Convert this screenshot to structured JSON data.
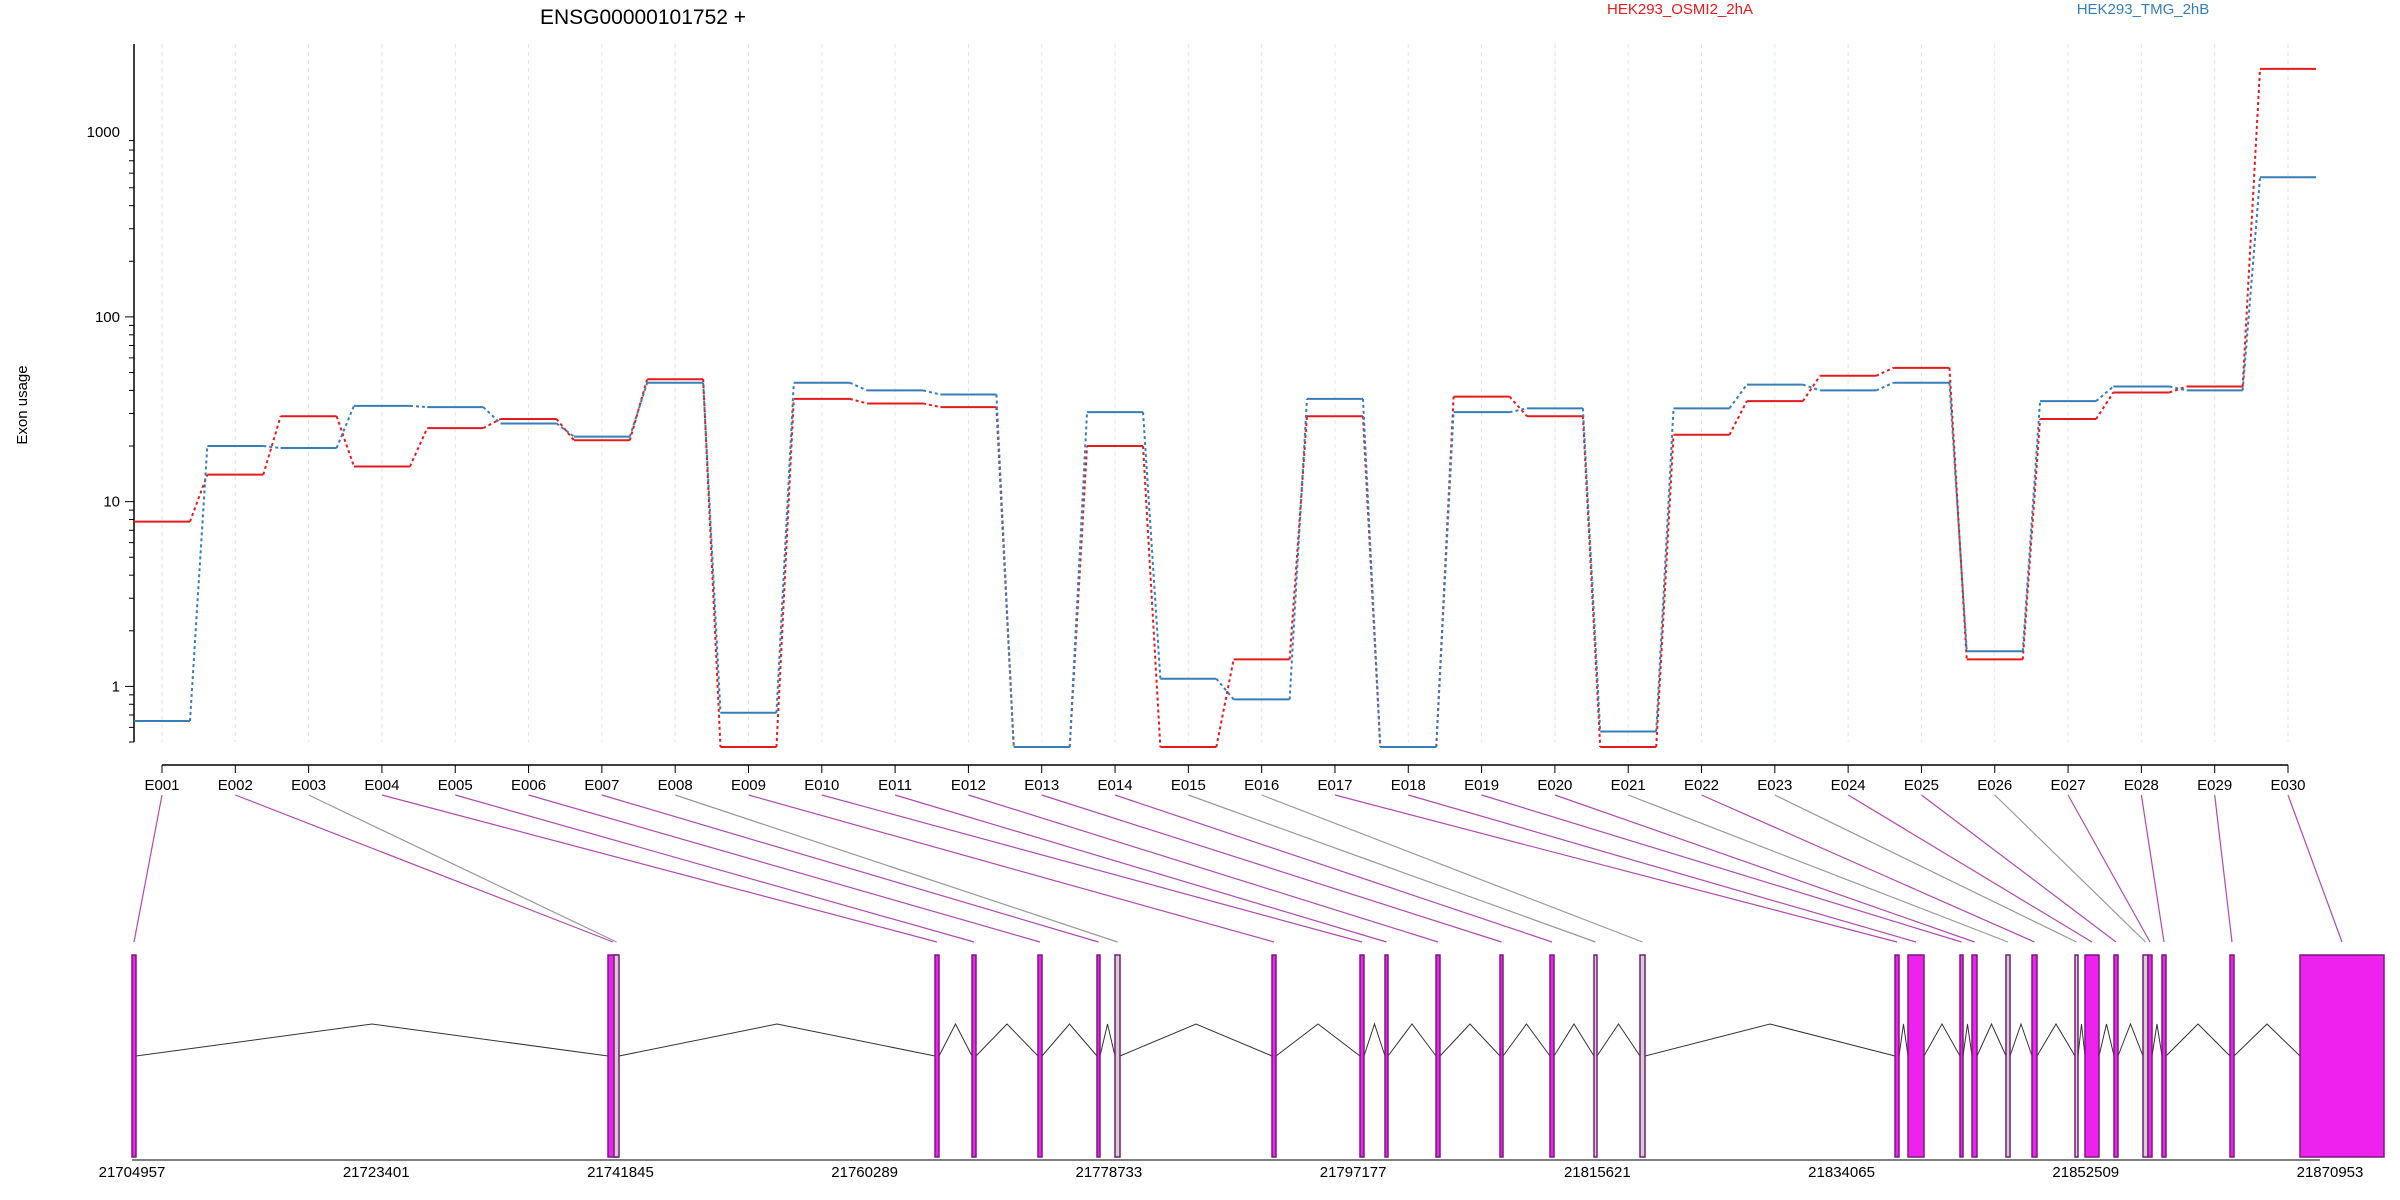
{
  "chart_data": {
    "type": "line",
    "title": "ENSG00000101752 +",
    "ylabel": "Exon usage",
    "yscale": "log",
    "ylim": [
      0.5,
      3000
    ],
    "yticks": [
      1,
      10,
      100,
      1000
    ],
    "ytick_labels": [
      "1",
      "10",
      "100",
      "1000"
    ],
    "categories": [
      "E001",
      "E002",
      "E003",
      "E004",
      "E005",
      "E006",
      "E007",
      "E008",
      "E009",
      "E010",
      "E011",
      "E012",
      "E013",
      "E014",
      "E015",
      "E016",
      "E017",
      "E018",
      "E019",
      "E020",
      "E021",
      "E022",
      "E023",
      "E024",
      "E025",
      "E026",
      "E027",
      "E028",
      "E029",
      "E030"
    ],
    "series": [
      {
        "name": "HEK293_OSMI2_2hA",
        "color": "#e41a1c",
        "values": [
          7.8,
          14,
          29,
          15.5,
          25,
          28,
          21.5,
          46,
          0.47,
          36,
          34,
          32.5,
          0.47,
          20,
          0.47,
          1.4,
          29,
          0.47,
          37,
          29,
          0.47,
          23,
          35,
          48,
          53,
          1.4,
          28,
          39,
          42,
          2200
        ]
      },
      {
        "name": "HEK293_TMG_2hB",
        "color": "#377eb8",
        "values": [
          0.65,
          20,
          19.5,
          33,
          32.5,
          26.5,
          22.5,
          44,
          0.72,
          44,
          40,
          38,
          0.47,
          30.5,
          1.1,
          0.85,
          36,
          0.47,
          30.5,
          32,
          0.57,
          32,
          43,
          40,
          44,
          1.55,
          35,
          42,
          40,
          570
        ]
      }
    ],
    "gene_axis": {
      "tick_labels": [
        "21704957",
        "21723401",
        "21741845",
        "21760289",
        "21778733",
        "21797177",
        "21815621",
        "21834065",
        "21852509",
        "21870953"
      ]
    },
    "gene_model": {
      "exons": [
        {
          "id": "E001",
          "color": "#ee22ee"
        },
        {
          "id": "E002",
          "color": "#ee22ee"
        },
        {
          "id": "E003",
          "color": "#d0d0d0"
        },
        {
          "id": "E004",
          "color": "#ee22ee"
        },
        {
          "id": "E005",
          "color": "#ee22ee"
        },
        {
          "id": "E006",
          "color": "#ee22ee"
        },
        {
          "id": "E007",
          "color": "#ee22ee"
        },
        {
          "id": "E008",
          "color": "#d0d0d0"
        },
        {
          "id": "E009",
          "color": "#ee22ee"
        },
        {
          "id": "E010",
          "color": "#ee22ee"
        },
        {
          "id": "E011",
          "color": "#ee22ee"
        },
        {
          "id": "E012",
          "color": "#ee22ee"
        },
        {
          "id": "E013",
          "color": "#ee22ee"
        },
        {
          "id": "E014",
          "color": "#ee22ee"
        },
        {
          "id": "E015",
          "color": "#d0d0d0"
        },
        {
          "id": "E016",
          "color": "#d0d0d0"
        },
        {
          "id": "E017",
          "color": "#ee22ee"
        },
        {
          "id": "E018",
          "color": "#ee22ee"
        },
        {
          "id": "E019",
          "color": "#ee22ee"
        },
        {
          "id": "E020",
          "color": "#ee22ee"
        },
        {
          "id": "E021",
          "color": "#d0d0d0"
        },
        {
          "id": "E022",
          "color": "#ee22ee"
        },
        {
          "id": "E023",
          "color": "#d0d0d0"
        },
        {
          "id": "E024",
          "color": "#ee22ee"
        },
        {
          "id": "E025",
          "color": "#ee22ee"
        },
        {
          "id": "E026",
          "color": "#d0d0d0"
        },
        {
          "id": "E027",
          "color": "#ee22ee"
        },
        {
          "id": "E028",
          "color": "#ee22ee"
        },
        {
          "id": "E029",
          "color": "#ee22ee"
        },
        {
          "id": "E030",
          "color": "#ee22ee"
        }
      ]
    },
    "grid": true,
    "legend_position": "top"
  },
  "colors": {
    "accent_exon": "#ee22ee",
    "inactive_exon": "#d0d0d0",
    "connector": "#b04ab0",
    "gridline": "#f4dede"
  }
}
